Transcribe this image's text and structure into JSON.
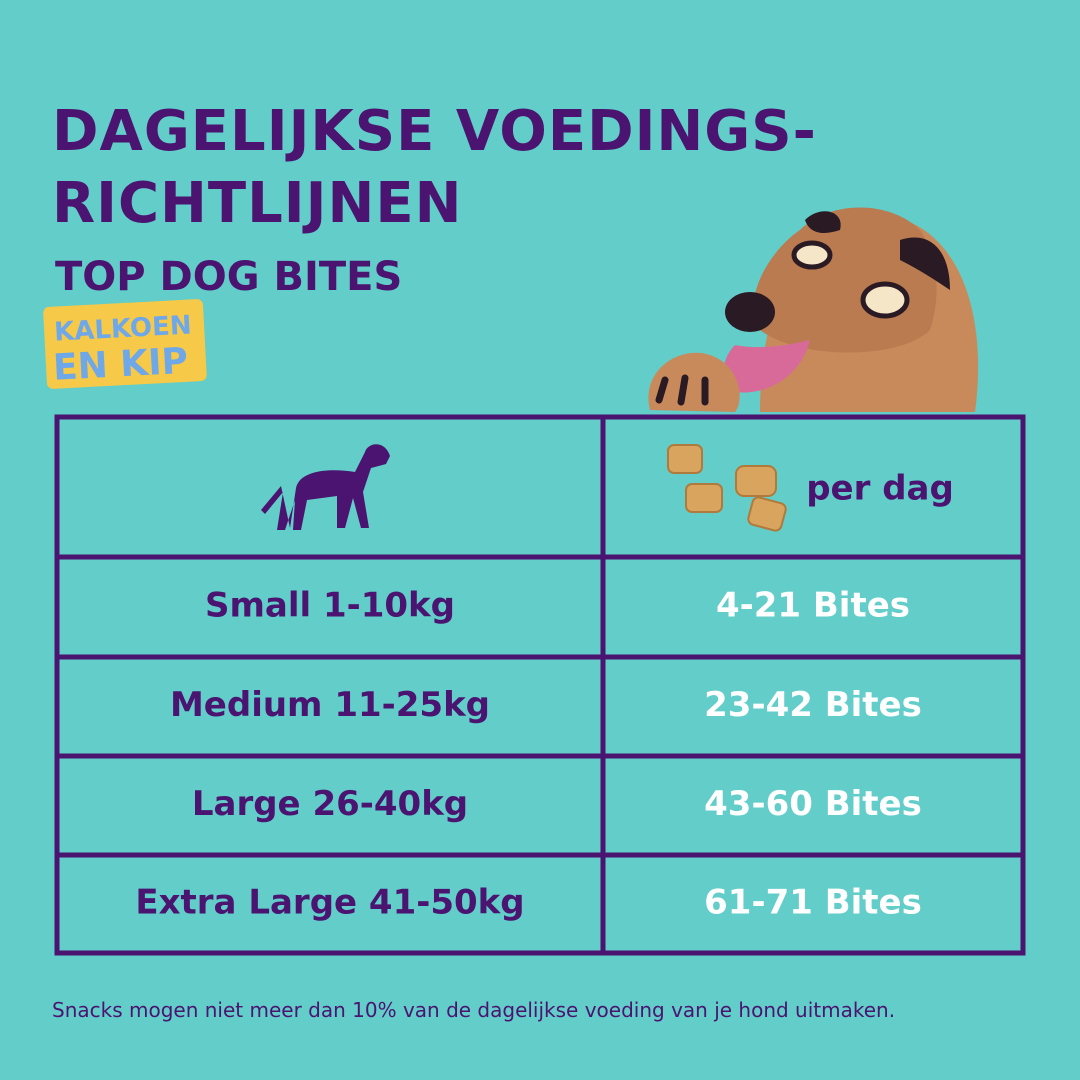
{
  "header": {
    "title": [
      "DAGELIJKSE VOEDINGS-",
      "RICHTLIJNEN"
    ],
    "subtitle": "TOP DOG BITES",
    "badge": [
      "KALKOEN",
      "EN KIP"
    ]
  },
  "table": {
    "header": "per dag",
    "rows": [
      [
        "Small 1-10kg",
        "4-21 Bites"
      ],
      [
        "Medium 11-25kg",
        "23-42 Bites"
      ],
      [
        "Large 26-40kg",
        "43-60 Bites"
      ],
      [
        "Extra Large 41-50kg",
        "61-71 Bites"
      ]
    ]
  },
  "footer": "Snacks mogen niet meer dan 10% van de dagelijkse voeding van je hond uitmaken."
}
